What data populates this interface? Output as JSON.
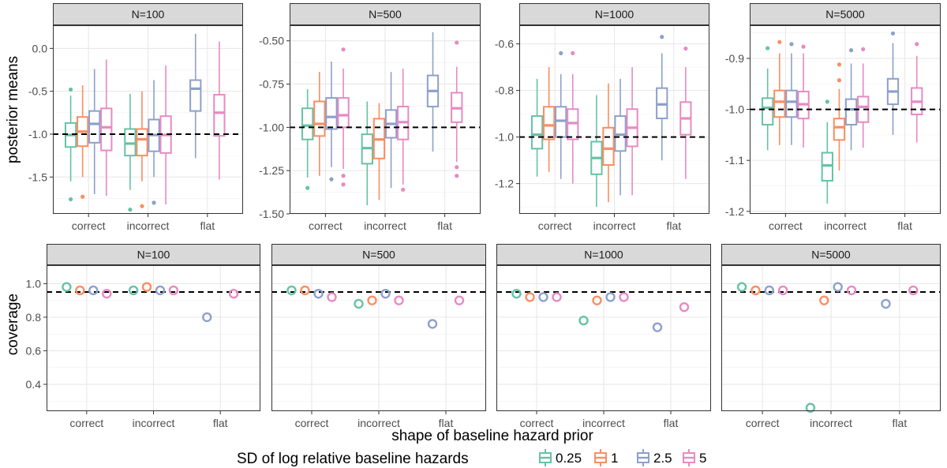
{
  "colors": {
    "0.25": "#66c2a5",
    "1": "#fc8d62",
    "2.5": "#8da0cb",
    "5": "#e78ac3"
  },
  "chart_data": {
    "type": "boxplot-and-scatter",
    "xlabel": "shape of baseline hazard prior",
    "legend": {
      "title": "SD of log relative baseline hazards",
      "entries": [
        "0.25",
        "1",
        "2.5",
        "5"
      ],
      "position": "bottom"
    },
    "categories": [
      "correct",
      "incorrect",
      "flat"
    ],
    "top_row": {
      "ylabel": "posterior means",
      "reference_line": -1.0,
      "panels": [
        {
          "title": "N=100",
          "ylim": [
            -1.93,
            0.27
          ],
          "yticks": [
            0.0,
            -0.5,
            -1.0,
            -1.5
          ],
          "ytick_labels": [
            "0.0",
            "-0.5",
            "-1.0",
            "-1.5"
          ],
          "boxes": [
            {
              "cat": "correct",
              "sd": "0.25",
              "min": -1.55,
              "q1": -1.15,
              "med": -1.01,
              "q3": -0.87,
              "max": -0.55,
              "outliers": [
                -0.48,
                -1.76
              ]
            },
            {
              "cat": "correct",
              "sd": "1",
              "min": -1.5,
              "q1": -1.14,
              "med": -0.97,
              "q3": -0.8,
              "max": -0.43,
              "outliers": [
                -1.73
              ]
            },
            {
              "cat": "correct",
              "sd": "2.5",
              "min": -1.7,
              "q1": -1.1,
              "med": -0.88,
              "q3": -0.73,
              "max": -0.24,
              "outliers": []
            },
            {
              "cat": "correct",
              "sd": "5",
              "min": -1.72,
              "q1": -1.19,
              "med": -0.92,
              "q3": -0.7,
              "max": -0.13,
              "outliers": []
            },
            {
              "cat": "incorrect",
              "sd": "0.25",
              "min": -1.65,
              "q1": -1.25,
              "med": -1.11,
              "q3": -0.94,
              "max": -0.53,
              "outliers": [
                -1.88
              ]
            },
            {
              "cat": "incorrect",
              "sd": "1",
              "min": -1.55,
              "q1": -1.25,
              "med": -1.06,
              "q3": -0.94,
              "max": -0.5,
              "outliers": [
                -1.84
              ]
            },
            {
              "cat": "incorrect",
              "sd": "2.5",
              "min": -1.5,
              "q1": -1.2,
              "med": -1.01,
              "q3": -0.83,
              "max": -0.37,
              "outliers": [
                -1.8
              ]
            },
            {
              "cat": "incorrect",
              "sd": "5",
              "min": -1.82,
              "q1": -1.22,
              "med": -1.01,
              "q3": -0.79,
              "max": -0.2,
              "outliers": []
            },
            {
              "cat": "flat",
              "sd": "2.5",
              "min": -1.28,
              "q1": -0.73,
              "med": -0.47,
              "q3": -0.37,
              "max": 0.17,
              "outliers": []
            },
            {
              "cat": "flat",
              "sd": "5",
              "min": -1.53,
              "q1": -1.02,
              "med": -0.75,
              "q3": -0.54,
              "max": 0.08,
              "outliers": []
            }
          ]
        },
        {
          "title": "N=500",
          "ylim": [
            -1.5,
            -0.41
          ],
          "yticks": [
            -0.5,
            -0.75,
            -1.0,
            -1.25,
            -1.5
          ],
          "ytick_labels": [
            "-0.50",
            "-0.75",
            "-1.00",
            "-1.25",
            "-1.50"
          ],
          "boxes": [
            {
              "cat": "correct",
              "sd": "0.25",
              "min": -1.29,
              "q1": -1.07,
              "med": -0.99,
              "q3": -0.89,
              "max": -0.78,
              "outliers": [
                -1.35
              ]
            },
            {
              "cat": "correct",
              "sd": "1",
              "min": -1.28,
              "q1": -1.05,
              "med": -0.98,
              "q3": -0.85,
              "max": -0.68,
              "outliers": []
            },
            {
              "cat": "correct",
              "sd": "2.5",
              "min": -1.23,
              "q1": -1.01,
              "med": -0.94,
              "q3": -0.83,
              "max": -0.62,
              "outliers": [
                -1.3
              ]
            },
            {
              "cat": "correct",
              "sd": "5",
              "min": -1.24,
              "q1": -1.0,
              "med": -0.93,
              "q3": -0.83,
              "max": -0.66,
              "outliers": [
                -0.55,
                -1.28,
                -1.33
              ]
            },
            {
              "cat": "incorrect",
              "sd": "0.25",
              "min": -1.45,
              "q1": -1.21,
              "med": -1.12,
              "q3": -1.04,
              "max": -0.85,
              "outliers": []
            },
            {
              "cat": "incorrect",
              "sd": "1",
              "min": -1.42,
              "q1": -1.18,
              "med": -1.07,
              "q3": -0.95,
              "max": -0.86,
              "outliers": []
            },
            {
              "cat": "incorrect",
              "sd": "2.5",
              "min": -1.35,
              "q1": -1.06,
              "med": -0.98,
              "q3": -0.9,
              "max": -0.68,
              "outliers": []
            },
            {
              "cat": "incorrect",
              "sd": "5",
              "min": -1.33,
              "q1": -1.07,
              "med": -0.97,
              "q3": -0.88,
              "max": -0.66,
              "outliers": [
                -1.36
              ]
            },
            {
              "cat": "flat",
              "sd": "2.5",
              "min": -1.14,
              "q1": -0.88,
              "med": -0.79,
              "q3": -0.7,
              "max": -0.45,
              "outliers": []
            },
            {
              "cat": "flat",
              "sd": "5",
              "min": -1.2,
              "q1": -0.97,
              "med": -0.89,
              "q3": -0.8,
              "max": -0.65,
              "outliers": [
                -0.51,
                -1.23,
                -1.28
              ]
            }
          ]
        },
        {
          "title": "N=1000",
          "ylim": [
            -1.33,
            -0.52
          ],
          "yticks": [
            -0.6,
            -0.8,
            -1.0,
            -1.2
          ],
          "ytick_labels": [
            "-0.6",
            "-0.8",
            "-1.0",
            "-1.2"
          ],
          "boxes": [
            {
              "cat": "correct",
              "sd": "0.25",
              "min": -1.17,
              "q1": -1.05,
              "med": -0.99,
              "q3": -0.91,
              "max": -0.75,
              "outliers": []
            },
            {
              "cat": "correct",
              "sd": "1",
              "min": -1.15,
              "q1": -1.01,
              "med": -0.95,
              "q3": -0.87,
              "max": -0.7,
              "outliers": []
            },
            {
              "cat": "correct",
              "sd": "2.5",
              "min": -1.18,
              "q1": -1.0,
              "med": -0.93,
              "q3": -0.87,
              "max": -0.73,
              "outliers": [
                -0.64
              ]
            },
            {
              "cat": "correct",
              "sd": "5",
              "min": -1.2,
              "q1": -1.01,
              "med": -0.94,
              "q3": -0.88,
              "max": -0.73,
              "outliers": [
                -0.64
              ]
            },
            {
              "cat": "incorrect",
              "sd": "0.25",
              "min": -1.3,
              "q1": -1.16,
              "med": -1.09,
              "q3": -1.02,
              "max": -0.82,
              "outliers": []
            },
            {
              "cat": "incorrect",
              "sd": "1",
              "min": -1.28,
              "q1": -1.12,
              "med": -1.05,
              "q3": -0.96,
              "max": -0.77,
              "outliers": []
            },
            {
              "cat": "incorrect",
              "sd": "2.5",
              "min": -1.25,
              "q1": -1.06,
              "med": -0.99,
              "q3": -0.91,
              "max": -0.75,
              "outliers": []
            },
            {
              "cat": "incorrect",
              "sd": "5",
              "min": -1.25,
              "q1": -1.04,
              "med": -0.96,
              "q3": -0.88,
              "max": -0.7,
              "outliers": []
            },
            {
              "cat": "flat",
              "sd": "2.5",
              "min": -1.1,
              "q1": -0.92,
              "med": -0.86,
              "q3": -0.79,
              "max": -0.64,
              "outliers": [
                -0.57
              ]
            },
            {
              "cat": "flat",
              "sd": "5",
              "min": -1.18,
              "q1": -0.99,
              "med": -0.92,
              "q3": -0.85,
              "max": -0.7,
              "outliers": [
                -0.62
              ]
            }
          ]
        },
        {
          "title": "N=5000",
          "ylim": [
            -1.205,
            -0.835
          ],
          "yticks": [
            -0.9,
            -1.0,
            -1.1,
            -1.2
          ],
          "ytick_labels": [
            "-0.9",
            "-1.0",
            "-1.1",
            "-1.2"
          ],
          "boxes": [
            {
              "cat": "correct",
              "sd": "0.25",
              "min": -1.08,
              "q1": -1.03,
              "med": -0.997,
              "q3": -0.978,
              "max": -0.92,
              "outliers": [
                -0.88
              ]
            },
            {
              "cat": "correct",
              "sd": "1",
              "min": -1.07,
              "q1": -1.015,
              "med": -0.985,
              "q3": -0.963,
              "max": -0.89,
              "outliers": [
                -0.868
              ]
            },
            {
              "cat": "correct",
              "sd": "2.5",
              "min": -1.07,
              "q1": -1.015,
              "med": -0.985,
              "q3": -0.963,
              "max": -0.89,
              "outliers": [
                -0.872
              ]
            },
            {
              "cat": "correct",
              "sd": "5",
              "min": -1.075,
              "q1": -1.018,
              "med": -0.99,
              "q3": -0.965,
              "max": -0.89,
              "outliers": [
                -0.877
              ]
            },
            {
              "cat": "incorrect",
              "sd": "0.25",
              "min": -1.185,
              "q1": -1.14,
              "med": -1.11,
              "q3": -1.085,
              "max": -1.025,
              "outliers": [
                -0.985
              ]
            },
            {
              "cat": "incorrect",
              "sd": "1",
              "min": -1.12,
              "q1": -1.06,
              "med": -1.035,
              "q3": -1.018,
              "max": -0.96,
              "outliers": [
                -0.912,
                -0.943
              ]
            },
            {
              "cat": "incorrect",
              "sd": "2.5",
              "min": -1.08,
              "q1": -1.03,
              "med": -1.0,
              "q3": -0.98,
              "max": -0.91,
              "outliers": [
                -0.884
              ]
            },
            {
              "cat": "incorrect",
              "sd": "5",
              "min": -1.075,
              "q1": -1.025,
              "med": -0.995,
              "q3": -0.975,
              "max": -0.91,
              "outliers": [
                -0.882
              ]
            },
            {
              "cat": "flat",
              "sd": "2.5",
              "min": -1.05,
              "q1": -0.99,
              "med": -0.965,
              "q3": -0.94,
              "max": -0.87,
              "outliers": [
                -0.851
              ]
            },
            {
              "cat": "flat",
              "sd": "5",
              "min": -1.065,
              "q1": -1.01,
              "med": -0.985,
              "q3": -0.958,
              "max": -0.895,
              "outliers": [
                -0.872
              ]
            }
          ]
        }
      ]
    },
    "bottom_row": {
      "ylabel": "coverage",
      "reference_line": 0.95,
      "ylim": [
        0.24,
        1.11
      ],
      "yticks": [
        0.4,
        0.6,
        0.8,
        1.0
      ],
      "ytick_labels": [
        "0.4",
        "0.6",
        "0.8",
        "1.0"
      ],
      "panels": [
        {
          "title": "N=100",
          "points": [
            {
              "cat": "correct",
              "sd": "0.25",
              "value": 0.98
            },
            {
              "cat": "correct",
              "sd": "1",
              "value": 0.96
            },
            {
              "cat": "correct",
              "sd": "2.5",
              "value": 0.96
            },
            {
              "cat": "correct",
              "sd": "5",
              "value": 0.94
            },
            {
              "cat": "incorrect",
              "sd": "0.25",
              "value": 0.96
            },
            {
              "cat": "incorrect",
              "sd": "1",
              "value": 0.98
            },
            {
              "cat": "incorrect",
              "sd": "2.5",
              "value": 0.96
            },
            {
              "cat": "incorrect",
              "sd": "5",
              "value": 0.96
            },
            {
              "cat": "flat",
              "sd": "2.5",
              "value": 0.8
            },
            {
              "cat": "flat",
              "sd": "5",
              "value": 0.94
            }
          ]
        },
        {
          "title": "N=500",
          "points": [
            {
              "cat": "correct",
              "sd": "0.25",
              "value": 0.96
            },
            {
              "cat": "correct",
              "sd": "1",
              "value": 0.96
            },
            {
              "cat": "correct",
              "sd": "2.5",
              "value": 0.94
            },
            {
              "cat": "correct",
              "sd": "5",
              "value": 0.92
            },
            {
              "cat": "incorrect",
              "sd": "0.25",
              "value": 0.88
            },
            {
              "cat": "incorrect",
              "sd": "1",
              "value": 0.9
            },
            {
              "cat": "incorrect",
              "sd": "2.5",
              "value": 0.94
            },
            {
              "cat": "incorrect",
              "sd": "5",
              "value": 0.9
            },
            {
              "cat": "flat",
              "sd": "2.5",
              "value": 0.76
            },
            {
              "cat": "flat",
              "sd": "5",
              "value": 0.9
            }
          ]
        },
        {
          "title": "N=1000",
          "points": [
            {
              "cat": "correct",
              "sd": "0.25",
              "value": 0.94
            },
            {
              "cat": "correct",
              "sd": "1",
              "value": 0.92
            },
            {
              "cat": "correct",
              "sd": "2.5",
              "value": 0.92
            },
            {
              "cat": "correct",
              "sd": "5",
              "value": 0.92
            },
            {
              "cat": "incorrect",
              "sd": "0.25",
              "value": 0.78
            },
            {
              "cat": "incorrect",
              "sd": "1",
              "value": 0.9
            },
            {
              "cat": "incorrect",
              "sd": "2.5",
              "value": 0.92
            },
            {
              "cat": "incorrect",
              "sd": "5",
              "value": 0.92
            },
            {
              "cat": "flat",
              "sd": "2.5",
              "value": 0.74
            },
            {
              "cat": "flat",
              "sd": "5",
              "value": 0.86
            }
          ]
        },
        {
          "title": "N=5000",
          "points": [
            {
              "cat": "correct",
              "sd": "0.25",
              "value": 0.98
            },
            {
              "cat": "correct",
              "sd": "1",
              "value": 0.96
            },
            {
              "cat": "correct",
              "sd": "2.5",
              "value": 0.96
            },
            {
              "cat": "correct",
              "sd": "5",
              "value": 0.96
            },
            {
              "cat": "incorrect",
              "sd": "0.25",
              "value": 0.26
            },
            {
              "cat": "incorrect",
              "sd": "1",
              "value": 0.9
            },
            {
              "cat": "incorrect",
              "sd": "2.5",
              "value": 0.98
            },
            {
              "cat": "incorrect",
              "sd": "5",
              "value": 0.96
            },
            {
              "cat": "flat",
              "sd": "2.5",
              "value": 0.88
            },
            {
              "cat": "flat",
              "sd": "5",
              "value": 0.96
            }
          ]
        }
      ]
    }
  }
}
